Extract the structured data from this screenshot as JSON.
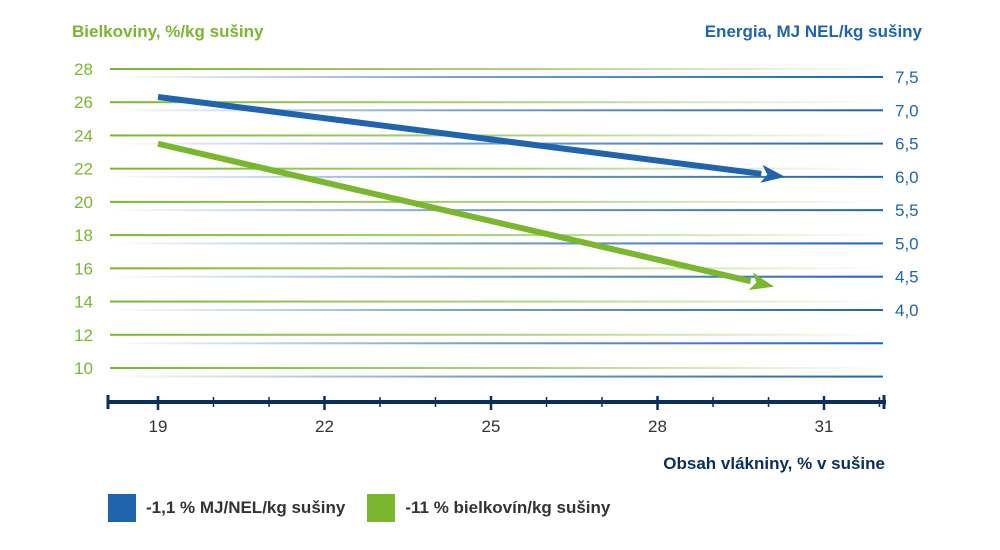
{
  "colors": {
    "blue": "#1f64ad",
    "green": "#7ab72e",
    "axis_dark": "#0a2f5c",
    "text_dark": "#333333"
  },
  "chart_data": {
    "type": "line",
    "title": "",
    "xlabel": "Obsah vlákniny, % v sušine",
    "ylabel_left": "Bielkoviny, %/kg sušiny",
    "ylabel_right": "Energia, MJ NEL/kg sušiny",
    "x_ticks": [
      "19",
      "22",
      "25",
      "28",
      "31"
    ],
    "xlim": [
      18.1,
      32.1
    ],
    "y_left_ticks": [
      "10",
      "12",
      "14",
      "16",
      "18",
      "20",
      "22",
      "24",
      "26",
      "28"
    ],
    "y_left_lim": [
      10,
      28
    ],
    "y_right_ticks": [
      "4,0",
      "4,5",
      "5,0",
      "5,5",
      "6,0",
      "6,5",
      "7,0",
      "7,5"
    ],
    "y_right_lim": [
      4.0,
      7.5
    ],
    "grid": true,
    "legend_position": "bottom",
    "series": [
      {
        "name": "-1,1 % MJ/NEL/kg sušiny",
        "axis": "right",
        "color": "#1f64ad",
        "x": [
          19,
          30.3
        ],
        "y": [
          7.2,
          6.0
        ],
        "arrow_end": true
      },
      {
        "name": "-11 % bielkovín/kg sušiny",
        "axis": "left",
        "color": "#7ab72e",
        "x": [
          19,
          30.1
        ],
        "y": [
          23.5,
          14.9
        ],
        "arrow_end": true
      }
    ]
  }
}
